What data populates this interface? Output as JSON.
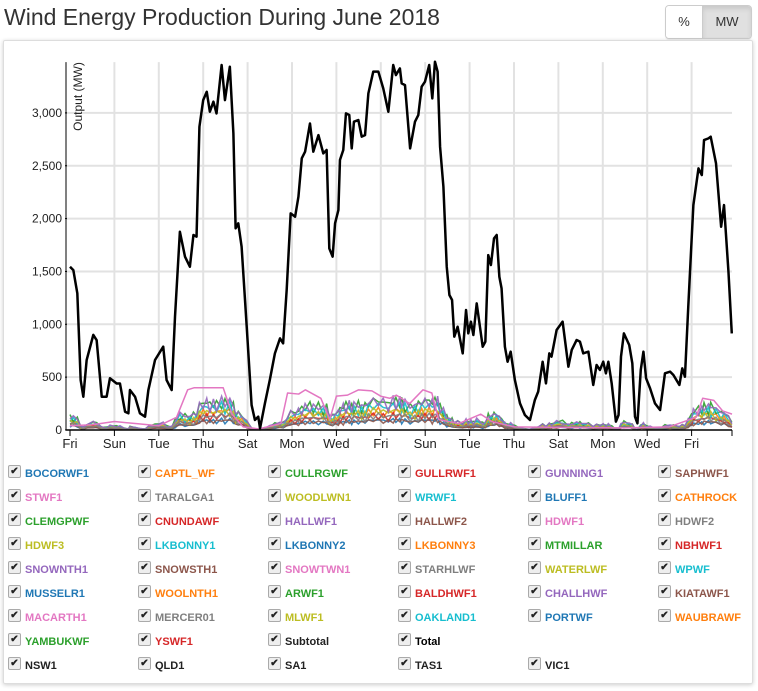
{
  "title": "Wind Energy Production During June 2018",
  "units_toggle": {
    "options": [
      "%",
      "MW"
    ],
    "selected": "MW"
  },
  "chart_data": {
    "type": "line",
    "title": "Wind Energy Production During June 2018",
    "xlabel": "",
    "ylabel": "Output (MW)",
    "x_unit": "day of June 2018",
    "xlim": [
      1,
      30.82
    ],
    "ylim": [
      0,
      3480
    ],
    "grid": true,
    "x_ticks": [
      1,
      3,
      5,
      7,
      9,
      11,
      13,
      15,
      17,
      19,
      21,
      23,
      25,
      27,
      29
    ],
    "x_tick_labels": [
      "Fri",
      "Sun",
      "Tue",
      "Thu",
      "Sat",
      "Mon",
      "Wed",
      "Fri",
      "Sun",
      "Tue",
      "Thu",
      "Sat",
      "Mon",
      "Wed",
      "Fri"
    ],
    "y_ticks": [
      0,
      500,
      1000,
      1500,
      2000,
      2500,
      3000
    ],
    "y_tick_labels": [
      "0",
      "500",
      "1,000",
      "1,500",
      "2,000",
      "2,500",
      "3,000"
    ],
    "legend_placement": "bottom",
    "series": [
      {
        "name": "Total",
        "color": "#000000",
        "points": [
          [
            1.0,
            1545
          ],
          [
            1.15,
            1513
          ],
          [
            1.33,
            1293
          ],
          [
            1.48,
            473
          ],
          [
            1.6,
            315
          ],
          [
            1.75,
            662
          ],
          [
            2.05,
            900
          ],
          [
            2.2,
            850
          ],
          [
            2.43,
            315
          ],
          [
            2.65,
            315
          ],
          [
            2.8,
            490
          ],
          [
            3.1,
            440
          ],
          [
            3.25,
            440
          ],
          [
            3.48,
            173
          ],
          [
            3.63,
            158
          ],
          [
            3.7,
            378
          ],
          [
            3.93,
            315
          ],
          [
            4.15,
            158
          ],
          [
            4.38,
            126
          ],
          [
            4.53,
            378
          ],
          [
            4.83,
            662
          ],
          [
            5.2,
            788
          ],
          [
            5.35,
            473
          ],
          [
            5.58,
            378
          ],
          [
            5.73,
            1072
          ],
          [
            5.95,
            1876
          ],
          [
            6.18,
            1640
          ],
          [
            6.4,
            1545
          ],
          [
            6.56,
            1845
          ],
          [
            6.7,
            1829
          ],
          [
            6.83,
            2869
          ],
          [
            7.0,
            3121
          ],
          [
            7.16,
            3200
          ],
          [
            7.3,
            3011
          ],
          [
            7.46,
            3106
          ],
          [
            7.6,
            2995
          ],
          [
            7.83,
            3453
          ],
          [
            7.98,
            3121
          ],
          [
            8.2,
            3437
          ],
          [
            8.36,
            2806
          ],
          [
            8.46,
            1908
          ],
          [
            8.58,
            1955
          ],
          [
            8.73,
            1734
          ],
          [
            8.96,
            977
          ],
          [
            9.18,
            236
          ],
          [
            9.33,
            95
          ],
          [
            9.48,
            126
          ],
          [
            9.56,
            16
          ],
          [
            9.78,
            252
          ],
          [
            10.0,
            473
          ],
          [
            10.23,
            725
          ],
          [
            10.46,
            867
          ],
          [
            10.6,
            820
          ],
          [
            10.76,
            1324
          ],
          [
            10.94,
            2050
          ],
          [
            11.14,
            2018
          ],
          [
            11.29,
            2207
          ],
          [
            11.44,
            2570
          ],
          [
            11.59,
            2633
          ],
          [
            11.81,
            2900
          ],
          [
            11.96,
            2633
          ],
          [
            12.19,
            2790
          ],
          [
            12.41,
            2617
          ],
          [
            12.56,
            2649
          ],
          [
            12.68,
            1718
          ],
          [
            12.83,
            1640
          ],
          [
            12.94,
            1955
          ],
          [
            13.09,
            2081
          ],
          [
            13.16,
            2554
          ],
          [
            13.31,
            2649
          ],
          [
            13.43,
            2995
          ],
          [
            13.58,
            2980
          ],
          [
            13.69,
            2664
          ],
          [
            13.79,
            2917
          ],
          [
            13.99,
            2932
          ],
          [
            14.14,
            2775
          ],
          [
            14.29,
            2790
          ],
          [
            14.44,
            3185
          ],
          [
            14.66,
            3390
          ],
          [
            14.89,
            3390
          ],
          [
            15.11,
            3232
          ],
          [
            15.34,
            3011
          ],
          [
            15.56,
            3453
          ],
          [
            15.68,
            3358
          ],
          [
            15.86,
            3421
          ],
          [
            15.94,
            3279
          ],
          [
            16.09,
            3263
          ],
          [
            16.32,
            2664
          ],
          [
            16.54,
            2917
          ],
          [
            16.69,
            2980
          ],
          [
            16.84,
            3248
          ],
          [
            16.99,
            3295
          ],
          [
            17.18,
            3453
          ],
          [
            17.32,
            3137
          ],
          [
            17.44,
            3484
          ],
          [
            17.56,
            3390
          ],
          [
            17.67,
            2680
          ],
          [
            17.82,
            2302
          ],
          [
            17.97,
            1545
          ],
          [
            18.09,
            1277
          ],
          [
            18.21,
            1230
          ],
          [
            18.31,
            883
          ],
          [
            18.46,
            977
          ],
          [
            18.69,
            725
          ],
          [
            18.84,
            1135
          ],
          [
            18.94,
            914
          ],
          [
            19.06,
            1025
          ],
          [
            19.17,
            899
          ],
          [
            19.32,
            1198
          ],
          [
            19.59,
            788
          ],
          [
            19.71,
            836
          ],
          [
            19.84,
            1655
          ],
          [
            19.96,
            1561
          ],
          [
            20.1,
            1813
          ],
          [
            20.22,
            1845
          ],
          [
            20.34,
            1450
          ],
          [
            20.44,
            1340
          ],
          [
            20.59,
            788
          ],
          [
            20.71,
            646
          ],
          [
            20.85,
            741
          ],
          [
            21.04,
            473
          ],
          [
            21.27,
            252
          ],
          [
            21.49,
            142
          ],
          [
            21.72,
            95
          ],
          [
            21.94,
            284
          ],
          [
            22.09,
            363
          ],
          [
            22.29,
            646
          ],
          [
            22.44,
            441
          ],
          [
            22.59,
            725
          ],
          [
            22.69,
            694
          ],
          [
            22.92,
            946
          ],
          [
            23.19,
            1025
          ],
          [
            23.45,
            599
          ],
          [
            23.6,
            757
          ],
          [
            23.82,
            851
          ],
          [
            23.97,
            836
          ],
          [
            24.12,
            725
          ],
          [
            24.35,
            741
          ],
          [
            24.57,
            426
          ],
          [
            24.72,
            615
          ],
          [
            24.87,
            568
          ],
          [
            25.02,
            646
          ],
          [
            25.14,
            536
          ],
          [
            25.25,
            646
          ],
          [
            25.4,
            441
          ],
          [
            25.59,
            79
          ],
          [
            25.71,
            142
          ],
          [
            25.82,
            694
          ],
          [
            25.95,
            914
          ],
          [
            26.19,
            804
          ],
          [
            26.33,
            631
          ],
          [
            26.45,
            126
          ],
          [
            26.56,
            63
          ],
          [
            26.71,
            568
          ],
          [
            26.83,
            741
          ],
          [
            26.95,
            489
          ],
          [
            27.13,
            394
          ],
          [
            27.35,
            252
          ],
          [
            27.58,
            189
          ],
          [
            27.8,
            536
          ],
          [
            28.03,
            552
          ],
          [
            28.18,
            520
          ],
          [
            28.45,
            426
          ],
          [
            28.58,
            583
          ],
          [
            28.7,
            504
          ],
          [
            28.85,
            1167
          ],
          [
            29.0,
            1797
          ],
          [
            29.08,
            2128
          ],
          [
            29.31,
            2475
          ],
          [
            29.46,
            2412
          ],
          [
            29.56,
            2743
          ],
          [
            29.76,
            2759
          ],
          [
            29.86,
            2775
          ],
          [
            30.1,
            2522
          ],
          [
            30.33,
            1923
          ],
          [
            30.46,
            2128
          ],
          [
            30.66,
            1498
          ],
          [
            30.81,
            914
          ]
        ]
      },
      {
        "name": "MACARTH1",
        "color": "#e377c2",
        "points": [
          [
            1,
            40
          ],
          [
            2,
            50
          ],
          [
            3,
            80
          ],
          [
            4,
            60
          ],
          [
            5,
            40
          ],
          [
            5.8,
            120
          ],
          [
            6.3,
            380
          ],
          [
            6.6,
            400
          ],
          [
            7.9,
            400
          ],
          [
            8.3,
            150
          ],
          [
            8.8,
            30
          ],
          [
            9.5,
            10
          ],
          [
            10.5,
            60
          ],
          [
            10.8,
            350
          ],
          [
            11.3,
            340
          ],
          [
            11.6,
            380
          ],
          [
            12.3,
            300
          ],
          [
            12.7,
            100
          ],
          [
            13.0,
            320
          ],
          [
            13.5,
            330
          ],
          [
            14.0,
            380
          ],
          [
            14.6,
            370
          ],
          [
            15.0,
            320
          ],
          [
            15.4,
            300
          ],
          [
            15.7,
            330
          ],
          [
            16.3,
            250
          ],
          [
            16.9,
            380
          ],
          [
            17.3,
            350
          ],
          [
            17.6,
            100
          ],
          [
            18.5,
            60
          ],
          [
            19.5,
            150
          ],
          [
            20.0,
            80
          ],
          [
            21,
            30
          ],
          [
            23,
            25
          ],
          [
            26,
            20
          ],
          [
            28,
            30
          ],
          [
            29.2,
            120
          ],
          [
            29.5,
            300
          ],
          [
            30.0,
            280
          ],
          [
            30.4,
            180
          ],
          [
            30.82,
            150
          ]
        ]
      }
    ]
  },
  "legend": [
    {
      "label": "BOCORWF1",
      "color": "#1f77b4"
    },
    {
      "label": "CAPTL_WF",
      "color": "#ff7f0e"
    },
    {
      "label": "CULLRGWF",
      "color": "#2ca02c"
    },
    {
      "label": "GULLRWF1",
      "color": "#d62728"
    },
    {
      "label": "GUNNING1",
      "color": "#9467bd"
    },
    {
      "label": "SAPHWF1",
      "color": "#8c564b"
    },
    {
      "label": "STWF1",
      "color": "#e377c2"
    },
    {
      "label": "TARALGA1",
      "color": "#7f7f7f"
    },
    {
      "label": "WOODLWN1",
      "color": "#bcbd22"
    },
    {
      "label": "WRWF1",
      "color": "#17becf"
    },
    {
      "label": "BLUFF1",
      "color": "#1f77b4"
    },
    {
      "label": "CATHROCK",
      "color": "#ff7f0e"
    },
    {
      "label": "CLEMGPWF",
      "color": "#2ca02c"
    },
    {
      "label": "CNUNDAWF",
      "color": "#d62728"
    },
    {
      "label": "HALLWF1",
      "color": "#9467bd"
    },
    {
      "label": "HALLWF2",
      "color": "#8c564b"
    },
    {
      "label": "HDWF1",
      "color": "#e377c2"
    },
    {
      "label": "HDWF2",
      "color": "#7f7f7f"
    },
    {
      "label": "HDWF3",
      "color": "#bcbd22"
    },
    {
      "label": "LKBONNY1",
      "color": "#17becf"
    },
    {
      "label": "LKBONNY2",
      "color": "#1f77b4"
    },
    {
      "label": "LKBONNY3",
      "color": "#ff7f0e"
    },
    {
      "label": "MTMILLAR",
      "color": "#2ca02c"
    },
    {
      "label": "NBHWF1",
      "color": "#d62728"
    },
    {
      "label": "SNOWNTH1",
      "color": "#9467bd"
    },
    {
      "label": "SNOWSTH1",
      "color": "#8c564b"
    },
    {
      "label": "SNOWTWN1",
      "color": "#e377c2"
    },
    {
      "label": "STARHLWF",
      "color": "#7f7f7f"
    },
    {
      "label": "WATERLWF",
      "color": "#bcbd22"
    },
    {
      "label": "WPWF",
      "color": "#17becf"
    },
    {
      "label": "MUSSELR1",
      "color": "#1f77b4"
    },
    {
      "label": "WOOLNTH1",
      "color": "#ff7f0e"
    },
    {
      "label": "ARWF1",
      "color": "#2ca02c"
    },
    {
      "label": "BALDHWF1",
      "color": "#d62728"
    },
    {
      "label": "CHALLHWF",
      "color": "#9467bd"
    },
    {
      "label": "KIATAWF1",
      "color": "#8c564b"
    },
    {
      "label": "MACARTH1",
      "color": "#e377c2"
    },
    {
      "label": "MERCER01",
      "color": "#7f7f7f"
    },
    {
      "label": "MLWF1",
      "color": "#bcbd22"
    },
    {
      "label": "OAKLAND1",
      "color": "#17becf"
    },
    {
      "label": "PORTWF",
      "color": "#1f77b4"
    },
    {
      "label": "WAUBRAWF",
      "color": "#ff7f0e"
    },
    {
      "label": "YAMBUKWF",
      "color": "#2ca02c"
    },
    {
      "label": "YSWF1",
      "color": "#d62728"
    },
    {
      "label": "Subtotal",
      "color": "#222222"
    },
    {
      "label": "Total",
      "color": "#000000"
    },
    {
      "label": "NSW1",
      "color": "#222222"
    },
    {
      "label": "QLD1",
      "color": "#222222"
    },
    {
      "label": "SA1",
      "color": "#222222"
    },
    {
      "label": "TAS1",
      "color": "#222222"
    },
    {
      "label": "VIC1",
      "color": "#222222"
    }
  ]
}
